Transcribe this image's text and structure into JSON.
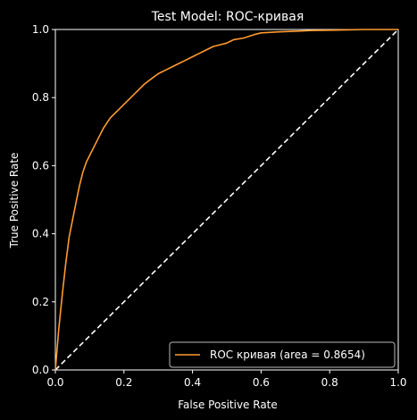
{
  "chart_data": {
    "type": "line",
    "title": "Test Model: ROC-кривая",
    "xlabel": "False Positive Rate",
    "ylabel": "True Positive Rate",
    "xlim": [
      0.0,
      1.0
    ],
    "ylim": [
      0.0,
      1.0
    ],
    "xticks": [
      "0.0",
      "0.2",
      "0.4",
      "0.6",
      "0.8",
      "1.0"
    ],
    "yticks": [
      "0.0",
      "0.2",
      "0.4",
      "0.6",
      "0.8",
      "1.0"
    ],
    "grid": false,
    "legend_position": "lower-right",
    "background_color": "#000000",
    "foreground_color": "#ffffff",
    "series": [
      {
        "name": "ROC кривая (area = 0.8654)",
        "style": "solid",
        "color": "#ff9a2e",
        "x": [
          0.0,
          0.005,
          0.01,
          0.02,
          0.03,
          0.04,
          0.05,
          0.06,
          0.07,
          0.08,
          0.09,
          0.1,
          0.12,
          0.14,
          0.16,
          0.18,
          0.2,
          0.22,
          0.24,
          0.26,
          0.28,
          0.3,
          0.32,
          0.34,
          0.36,
          0.38,
          0.4,
          0.42,
          0.44,
          0.46,
          0.48,
          0.5,
          0.52,
          0.55,
          0.58,
          0.6,
          0.65,
          0.7,
          0.75,
          0.8,
          0.85,
          0.9,
          0.95,
          1.0
        ],
        "y": [
          0.0,
          0.06,
          0.12,
          0.22,
          0.31,
          0.39,
          0.44,
          0.49,
          0.54,
          0.58,
          0.61,
          0.63,
          0.67,
          0.71,
          0.74,
          0.76,
          0.78,
          0.8,
          0.82,
          0.84,
          0.855,
          0.87,
          0.88,
          0.89,
          0.9,
          0.91,
          0.92,
          0.93,
          0.94,
          0.95,
          0.955,
          0.96,
          0.97,
          0.975,
          0.985,
          0.99,
          0.993,
          0.995,
          0.997,
          0.998,
          0.999,
          1.0,
          1.0,
          1.0
        ]
      },
      {
        "name": "",
        "style": "dashed",
        "color": "#ffffff",
        "x": [
          0.0,
          1.0
        ],
        "y": [
          0.0,
          1.0
        ]
      }
    ]
  }
}
